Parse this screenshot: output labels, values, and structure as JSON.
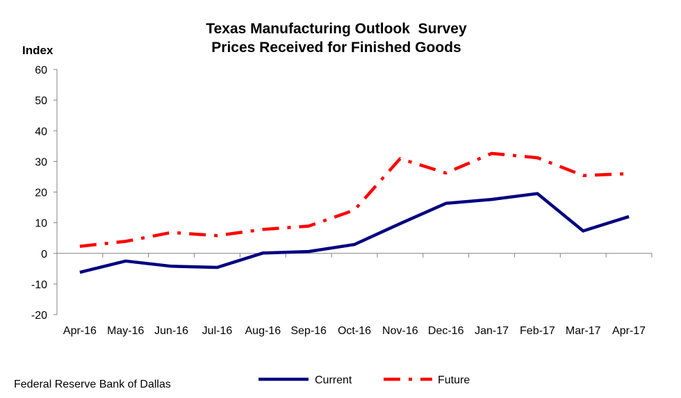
{
  "chart_data": {
    "type": "line",
    "title": "Texas Manufacturing Outlook  Survey",
    "subtitle": "Prices Received for Finished Goods",
    "ylabel": "Index",
    "xlabel": "",
    "ylim": [
      -20,
      60
    ],
    "yticks": [
      "60",
      "50",
      "40",
      "30",
      "20",
      "10",
      "0",
      "-10",
      "-20"
    ],
    "categories": [
      "Apr-16",
      "May-16",
      "Jun-16",
      "Jul-16",
      "Aug-16",
      "Sep-16",
      "Oct-16",
      "Nov-16",
      "Dec-16",
      "Jan-17",
      "Feb-17",
      "Mar-17",
      "Apr-17"
    ],
    "series": [
      {
        "name": "Current",
        "color": "#000080",
        "style": "solid",
        "values": [
          -6.2,
          -2.5,
          -4.2,
          -4.6,
          0.1,
          0.6,
          2.9,
          9.7,
          16.3,
          17.6,
          19.5,
          7.3,
          12.0
        ]
      },
      {
        "name": "Future",
        "color": "#ff0000",
        "style": "dash-dot",
        "values": [
          2.3,
          3.9,
          6.8,
          5.8,
          7.8,
          8.9,
          14.1,
          30.9,
          26.2,
          32.6,
          31.2,
          25.4,
          26.0
        ]
      }
    ],
    "grid": false,
    "legend_position": "bottom-center"
  },
  "footer": {
    "source": "Federal Reserve Bank of Dallas"
  }
}
